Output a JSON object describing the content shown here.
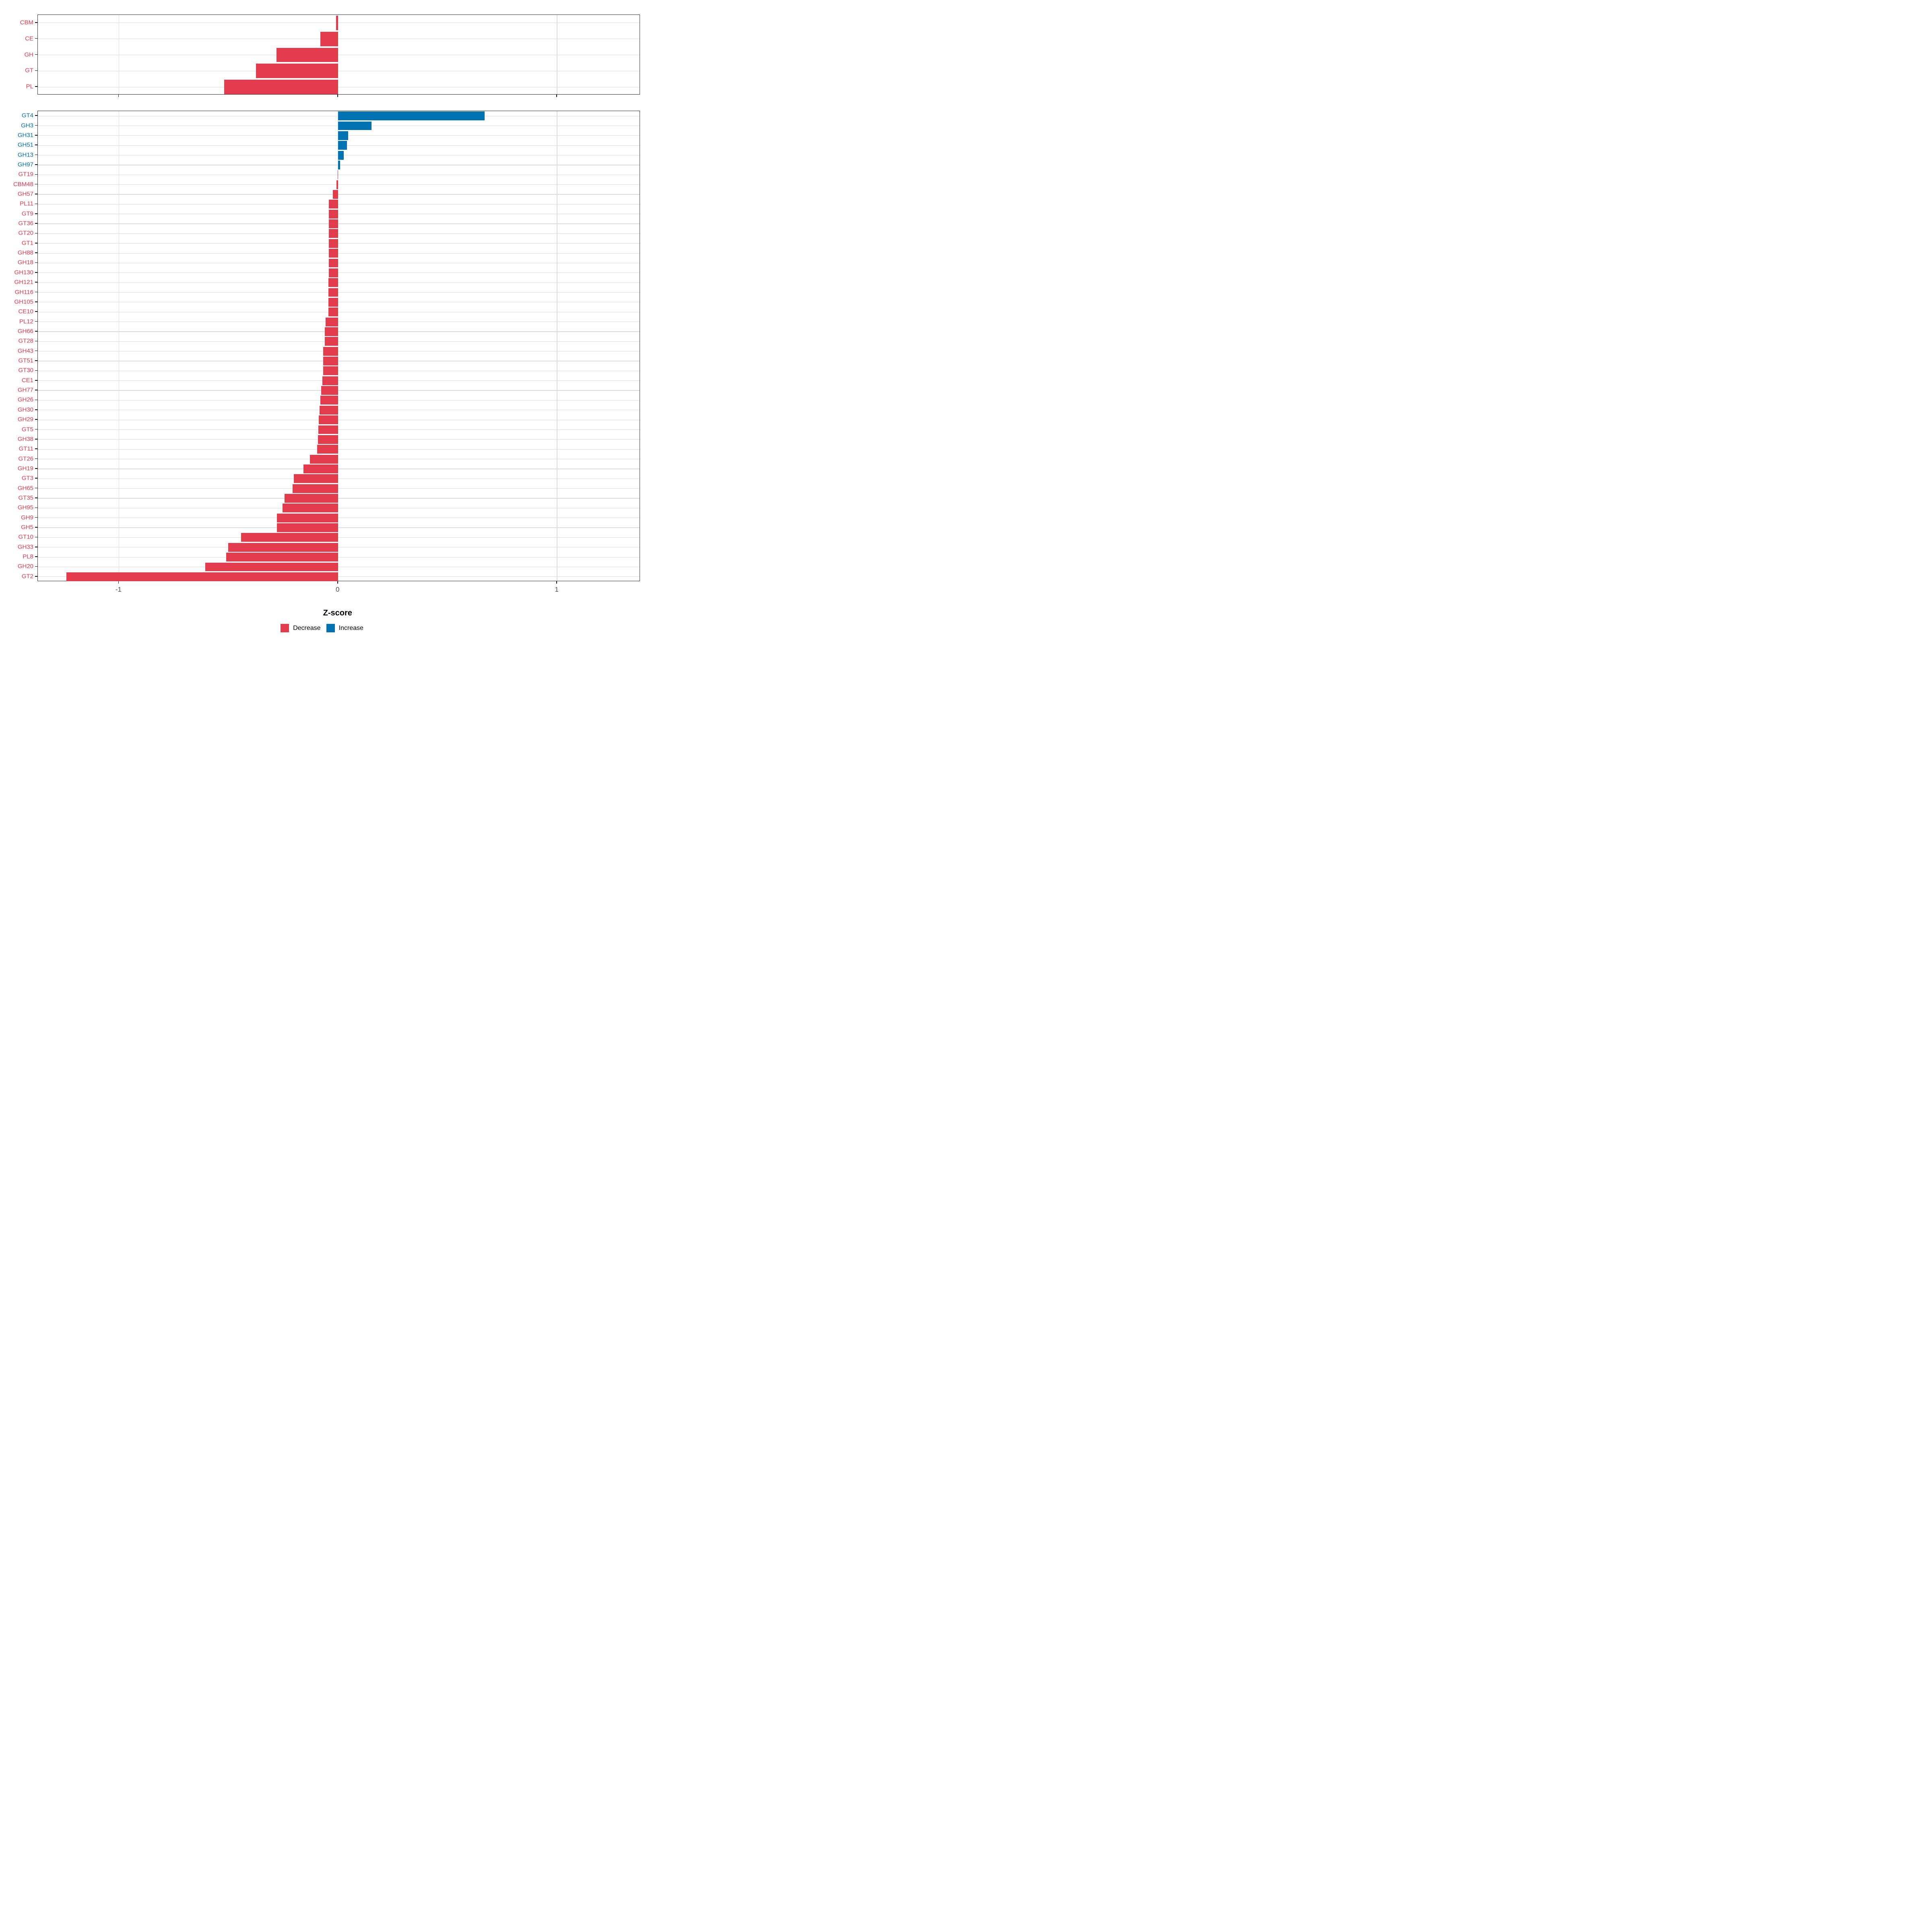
{
  "figure": {
    "x_axis": {
      "label": "Z-score",
      "ticks": [
        -1,
        0,
        1
      ],
      "tick_labels": [
        "-1",
        "0",
        "1"
      ],
      "range": [
        -1.37,
        1.38
      ]
    },
    "legend": {
      "items": [
        {
          "label": "Decrease",
          "color": "#E23B4C"
        },
        {
          "label": "Increase",
          "color": "#0072B2"
        }
      ]
    },
    "colors": {
      "decrease": "#E23B4C",
      "increase": "#0072B2",
      "axis_tick_text": "#4D4D4D",
      "grid": "#DCDCDC",
      "panel_border": "#333333"
    }
  },
  "chart_data": [
    {
      "type": "bar",
      "orientation": "horizontal",
      "panel": "cazyme-classes",
      "grid": true,
      "legend_position": "bottom",
      "xlabel": "Z-score",
      "xlim": [
        -1.37,
        1.38
      ],
      "categories": [
        "CBM",
        "CE",
        "GH",
        "GT",
        "PL"
      ],
      "values": [
        -0.008,
        -0.08,
        -0.28,
        -0.375,
        -0.52
      ]
    },
    {
      "type": "bar",
      "orientation": "horizontal",
      "panel": "cazyme-families",
      "grid": true,
      "legend_position": "bottom",
      "xlabel": "Z-score",
      "xlim": [
        -1.37,
        1.38
      ],
      "categories": [
        "GT4",
        "GH3",
        "GH31",
        "GH51",
        "GH13",
        "GH97",
        "GT19",
        "CBM48",
        "GH57",
        "PL11",
        "GT9",
        "GT36",
        "GT20",
        "GT1",
        "GH88",
        "GH18",
        "GH130",
        "GH121",
        "GH116",
        "GH105",
        "CE10",
        "PL12",
        "GH66",
        "GT28",
        "GH43",
        "GT51",
        "GT30",
        "CE1",
        "GH77",
        "GH26",
        "GH30",
        "GH29",
        "GT5",
        "GH38",
        "GT11",
        "GT26",
        "GH19",
        "GT3",
        "GH65",
        "GT35",
        "GH95",
        "GH9",
        "GH5",
        "GT10",
        "GH33",
        "PL8",
        "GH20",
        "GT2"
      ],
      "values": [
        0.67,
        0.153,
        0.046,
        0.04,
        0.027,
        0.009,
        -0.002,
        -0.007,
        -0.024,
        -0.042,
        -0.042,
        -0.042,
        -0.042,
        -0.042,
        -0.042,
        -0.042,
        -0.042,
        -0.043,
        -0.043,
        -0.043,
        -0.043,
        -0.056,
        -0.06,
        -0.06,
        -0.067,
        -0.068,
        -0.068,
        -0.072,
        -0.076,
        -0.08,
        -0.084,
        -0.087,
        -0.09,
        -0.091,
        -0.095,
        -0.129,
        -0.158,
        -0.202,
        -0.208,
        -0.243,
        -0.253,
        -0.278,
        -0.278,
        -0.443,
        -0.502,
        -0.511,
        -0.606,
        -1.24
      ]
    }
  ]
}
